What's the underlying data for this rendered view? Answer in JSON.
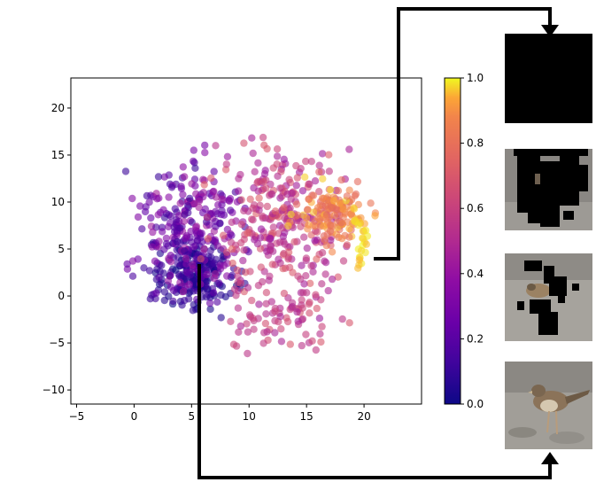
{
  "chart_data": {
    "type": "scatter",
    "title": "",
    "xlabel": "",
    "ylabel": "",
    "xlim": [
      -5.5,
      25
    ],
    "ylim": [
      -11.5,
      23.2
    ],
    "xticks": [
      "−5",
      "0",
      "5",
      "10",
      "15",
      "20"
    ],
    "xtick_values": [
      -5,
      0,
      5,
      10,
      15,
      20
    ],
    "yticks": [
      "−10",
      "−5",
      "0",
      "5",
      "10",
      "15",
      "20"
    ],
    "ytick_values": [
      -10,
      -5,
      0,
      5,
      10,
      15,
      20
    ],
    "colormap": "plasma",
    "point_alpha": 0.6,
    "grid": false,
    "legend": "none",
    "colorbar": {
      "range": [
        0,
        1
      ],
      "ticks": [
        "0.0",
        "0.2",
        "0.4",
        "0.6",
        "0.8",
        "1.0"
      ],
      "tick_values": [
        0,
        0.2,
        0.4,
        0.6,
        0.8,
        1.0
      ]
    },
    "clusters": [
      {
        "center": [
          5.2,
          2.2
        ],
        "spread": [
          2.6,
          2.6
        ],
        "count": 210,
        "value_range": [
          0.0,
          0.15
        ]
      },
      {
        "center": [
          5.0,
          7.0
        ],
        "spread": [
          4.0,
          5.5
        ],
        "count": 260,
        "value_range": [
          0.1,
          0.45
        ]
      },
      {
        "center": [
          13.0,
          8.0
        ],
        "spread": [
          5.0,
          6.5
        ],
        "count": 280,
        "value_range": [
          0.4,
          0.75
        ]
      },
      {
        "center": [
          17.5,
          9.0
        ],
        "spread": [
          2.5,
          2.5
        ],
        "count": 130,
        "value_range": [
          0.75,
          0.98
        ]
      },
      {
        "center": [
          13.0,
          -2.0
        ],
        "spread": [
          4.0,
          4.0
        ],
        "count": 90,
        "value_range": [
          0.45,
          0.7
        ]
      }
    ],
    "highlight_path": [
      [
        19.3,
        8.0
      ],
      [
        19.6,
        7.6
      ],
      [
        19.9,
        7.0
      ],
      [
        20.1,
        6.3
      ],
      [
        20.0,
        5.5
      ],
      [
        19.8,
        4.8
      ],
      [
        19.6,
        4.0
      ],
      [
        19.5,
        3.3
      ]
    ],
    "highlight_value": 1.0
  },
  "colors": {
    "arrow": "#000000",
    "tile_black": "#000000"
  },
  "images": {
    "tiles": [
      "masked-all-black",
      "masked-mostly-black",
      "masked-partial",
      "bird-photo"
    ]
  }
}
